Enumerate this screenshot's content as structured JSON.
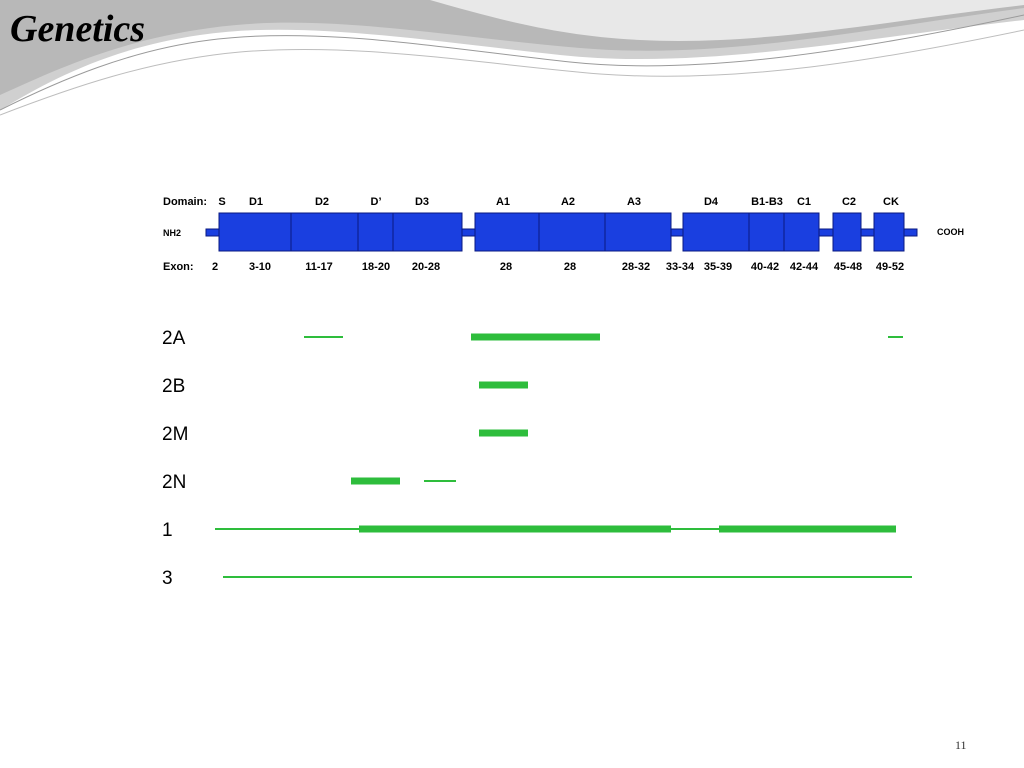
{
  "slide": {
    "title": "Genetics",
    "page_number": "11"
  },
  "protein": {
    "domain_label": "Domain:",
    "exon_label": "Exon:",
    "n_terminus": "NH2",
    "c_terminus": "COOH",
    "domains": [
      "S",
      "D1",
      "D2",
      "D’",
      "D3",
      "A1",
      "A2",
      "A3",
      "D4",
      "B1-B3",
      "C1",
      "C2",
      "CK"
    ],
    "exons": [
      "2",
      "3-10",
      "11-17",
      "18-20",
      "20-28",
      "28",
      "28",
      "28-32",
      "33-34",
      "35-39",
      "40-42",
      "42-44",
      "45-48",
      "49-52"
    ]
  },
  "mutation_types": [
    {
      "label": "2A"
    },
    {
      "label": "2B"
    },
    {
      "label": "2M"
    },
    {
      "label": "2N"
    },
    {
      "label": "1"
    },
    {
      "label": "3"
    }
  ],
  "colors": {
    "domain_fill": "#1a3fe0",
    "domain_stroke": "#0a1a80",
    "mutation_line": "#2ebd3c",
    "background_swoosh": "#c8c8c8"
  }
}
